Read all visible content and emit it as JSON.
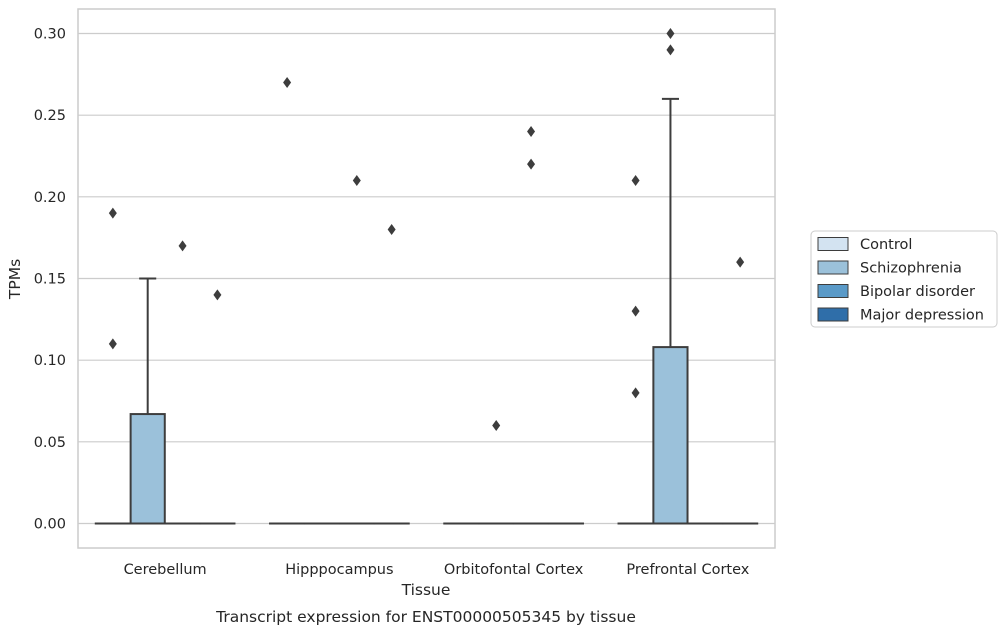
{
  "caption": "Transcript expression for ENST00000505345 by tissue",
  "chart_data": {
    "type": "box",
    "xlabel": "Tissue",
    "ylabel": "TPMs",
    "ylim": [
      -0.015,
      0.315
    ],
    "yticks": [
      0.0,
      0.05,
      0.1,
      0.15,
      0.2,
      0.25,
      0.3
    ],
    "ytick_labels": [
      "0.00",
      "0.05",
      "0.10",
      "0.15",
      "0.20",
      "0.25",
      "0.30"
    ],
    "categories": [
      "Cerebellum",
      "Hipppocampus",
      "Orbitofontal Cortex",
      "Prefrontal Cortex"
    ],
    "grid": "horizontal",
    "legend_position": "right",
    "series": [
      {
        "name": "Control",
        "color": "#d3e3f1",
        "boxes": [
          {
            "q1": 0.0,
            "median": 0.0,
            "q3": 0.0,
            "whisker_low": 0.0,
            "whisker_high": 0.0,
            "outliers": [
              0.11,
              0.19
            ]
          },
          {
            "q1": 0.0,
            "median": 0.0,
            "q3": 0.0,
            "whisker_low": 0.0,
            "whisker_high": 0.0,
            "outliers": [
              0.27
            ]
          },
          {
            "q1": 0.0,
            "median": 0.0,
            "q3": 0.0,
            "whisker_low": 0.0,
            "whisker_high": 0.0,
            "outliers": []
          },
          {
            "q1": 0.0,
            "median": 0.0,
            "q3": 0.0,
            "whisker_low": 0.0,
            "whisker_high": 0.0,
            "outliers": [
              0.08,
              0.13,
              0.21
            ]
          }
        ]
      },
      {
        "name": "Schizophrenia",
        "color": "#9bc1da",
        "boxes": [
          {
            "q1": 0.0,
            "median": 0.0,
            "q3": 0.067,
            "whisker_low": 0.0,
            "whisker_high": 0.15,
            "outliers": []
          },
          {
            "q1": 0.0,
            "median": 0.0,
            "q3": 0.0,
            "whisker_low": 0.0,
            "whisker_high": 0.0,
            "outliers": []
          },
          {
            "q1": 0.0,
            "median": 0.0,
            "q3": 0.0,
            "whisker_low": 0.0,
            "whisker_high": 0.0,
            "outliers": [
              0.06
            ]
          },
          {
            "q1": 0.0,
            "median": 0.0,
            "q3": 0.108,
            "whisker_low": 0.0,
            "whisker_high": 0.26,
            "outliers": [
              0.29,
              0.3
            ]
          }
        ]
      },
      {
        "name": "Bipolar disorder",
        "color": "#5a9ac8",
        "boxes": [
          {
            "q1": 0.0,
            "median": 0.0,
            "q3": 0.0,
            "whisker_low": 0.0,
            "whisker_high": 0.0,
            "outliers": [
              0.17
            ]
          },
          {
            "q1": 0.0,
            "median": 0.0,
            "q3": 0.0,
            "whisker_low": 0.0,
            "whisker_high": 0.0,
            "outliers": [
              0.21
            ]
          },
          {
            "q1": 0.0,
            "median": 0.0,
            "q3": 0.0,
            "whisker_low": 0.0,
            "whisker_high": 0.0,
            "outliers": [
              0.22,
              0.24
            ]
          },
          {
            "q1": 0.0,
            "median": 0.0,
            "q3": 0.0,
            "whisker_low": 0.0,
            "whisker_high": 0.0,
            "outliers": []
          }
        ]
      },
      {
        "name": "Major depression",
        "color": "#2f6ea9",
        "boxes": [
          {
            "q1": 0.0,
            "median": 0.0,
            "q3": 0.0,
            "whisker_low": 0.0,
            "whisker_high": 0.0,
            "outliers": [
              0.14
            ]
          },
          {
            "q1": 0.0,
            "median": 0.0,
            "q3": 0.0,
            "whisker_low": 0.0,
            "whisker_high": 0.0,
            "outliers": [
              0.18
            ]
          },
          {
            "q1": 0.0,
            "median": 0.0,
            "q3": 0.0,
            "whisker_low": 0.0,
            "whisker_high": 0.0,
            "outliers": []
          },
          {
            "q1": 0.0,
            "median": 0.0,
            "q3": 0.0,
            "whisker_low": 0.0,
            "whisker_high": 0.0,
            "outliers": [
              0.16
            ]
          }
        ]
      }
    ]
  }
}
